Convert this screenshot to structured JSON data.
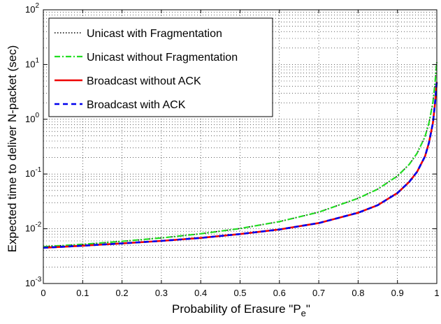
{
  "chart_data": {
    "type": "line",
    "title": "",
    "xlabel": "Probability of Erasure \"P",
    "xlabel_sub": "e",
    "xlabel_end": "\"",
    "ylabel": "Expected time to deliver N-packet (sec)",
    "xlim": [
      0,
      1
    ],
    "ylim": [
      0.001,
      100
    ],
    "yscale": "log",
    "grid": true,
    "legend_position": "top-left",
    "x_ticks": [
      "0",
      "0.1",
      "0.2",
      "0.3",
      "0.4",
      "0.5",
      "0.6",
      "0.7",
      "0.8",
      "0.9",
      "1"
    ],
    "y_ticks": [
      {
        "base": "10",
        "exp": "-3"
      },
      {
        "base": "10",
        "exp": "-2"
      },
      {
        "base": "10",
        "exp": "-1"
      },
      {
        "base": "10",
        "exp": "0"
      },
      {
        "base": "10",
        "exp": "1"
      },
      {
        "base": "10",
        "exp": "2"
      }
    ],
    "x": [
      0,
      0.1,
      0.2,
      0.3,
      0.4,
      0.5,
      0.6,
      0.7,
      0.8,
      0.85,
      0.9,
      0.93,
      0.95,
      0.97,
      0.98,
      0.99,
      0.995,
      1.0
    ],
    "series": [
      {
        "name": "Unicast with Fragmentation",
        "color": "#000000",
        "style": "dotted",
        "values": [
          0.0047,
          0.0052,
          0.0059,
          0.0068,
          0.0081,
          0.0101,
          0.0135,
          0.0201,
          0.036,
          0.053,
          0.092,
          0.15,
          0.24,
          0.48,
          0.85,
          2.0,
          4.2,
          11.0
        ]
      },
      {
        "name": "Unicast without Fragmentation",
        "color": "#22dd22",
        "style": "dashdot",
        "values": [
          0.0047,
          0.0052,
          0.0059,
          0.0068,
          0.0081,
          0.0101,
          0.0135,
          0.0201,
          0.036,
          0.053,
          0.092,
          0.15,
          0.24,
          0.48,
          0.85,
          2.0,
          4.2,
          11.0
        ]
      },
      {
        "name": "Broadcast without ACK",
        "color": "#ee0000",
        "style": "solid",
        "values": [
          0.0045,
          0.0049,
          0.0054,
          0.006,
          0.0068,
          0.008,
          0.0097,
          0.0127,
          0.0196,
          0.027,
          0.045,
          0.072,
          0.11,
          0.21,
          0.37,
          0.85,
          1.8,
          4.8
        ]
      },
      {
        "name": "Broadcast with ACK",
        "color": "#0000ee",
        "style": "dashed",
        "values": [
          0.0045,
          0.0049,
          0.0054,
          0.006,
          0.0068,
          0.008,
          0.0097,
          0.0127,
          0.0196,
          0.027,
          0.045,
          0.072,
          0.11,
          0.21,
          0.37,
          0.85,
          1.8,
          4.8
        ]
      }
    ]
  }
}
